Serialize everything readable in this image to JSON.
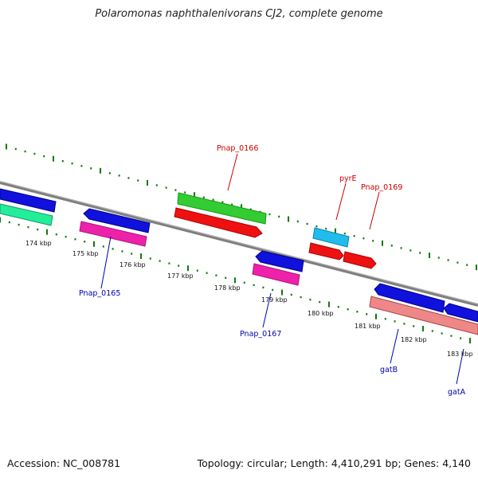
{
  "title": "Polaromonas naphthalenivorans CJ2, complete genome",
  "footer": {
    "accession": "Accession: NC_008781",
    "summary": "Topology: circular; Length: 4,410,291 bp; Genes: 4,140"
  },
  "colors": {
    "backbone": "#7f7f7f",
    "tick": "#0f7a0f",
    "label_forward": "#cc0000",
    "label_reverse": "#0000b0",
    "gene_green": "#33cc33",
    "gene_red": "#ee1111",
    "gene_blue": "#1111dd",
    "gene_magenta": "#ee22aa",
    "gene_cyan": "#22bbee",
    "gene_salmon": "#ee8888",
    "gene_teal": "#22ee99"
  },
  "kbp_labels": [
    "174 kbp",
    "175 kbp",
    "176 kbp",
    "177 kbp",
    "178 kbp",
    "179 kbp",
    "180 kbp",
    "181 kbp",
    "182 kbp",
    "183 kbp"
  ],
  "gene_labels": {
    "forward": [
      "Pnap_0166",
      "pyrE",
      "Pnap_0169"
    ],
    "reverse": [
      "Pnap_0165",
      "Pnap_0167",
      "gatB",
      "gatA"
    ]
  }
}
